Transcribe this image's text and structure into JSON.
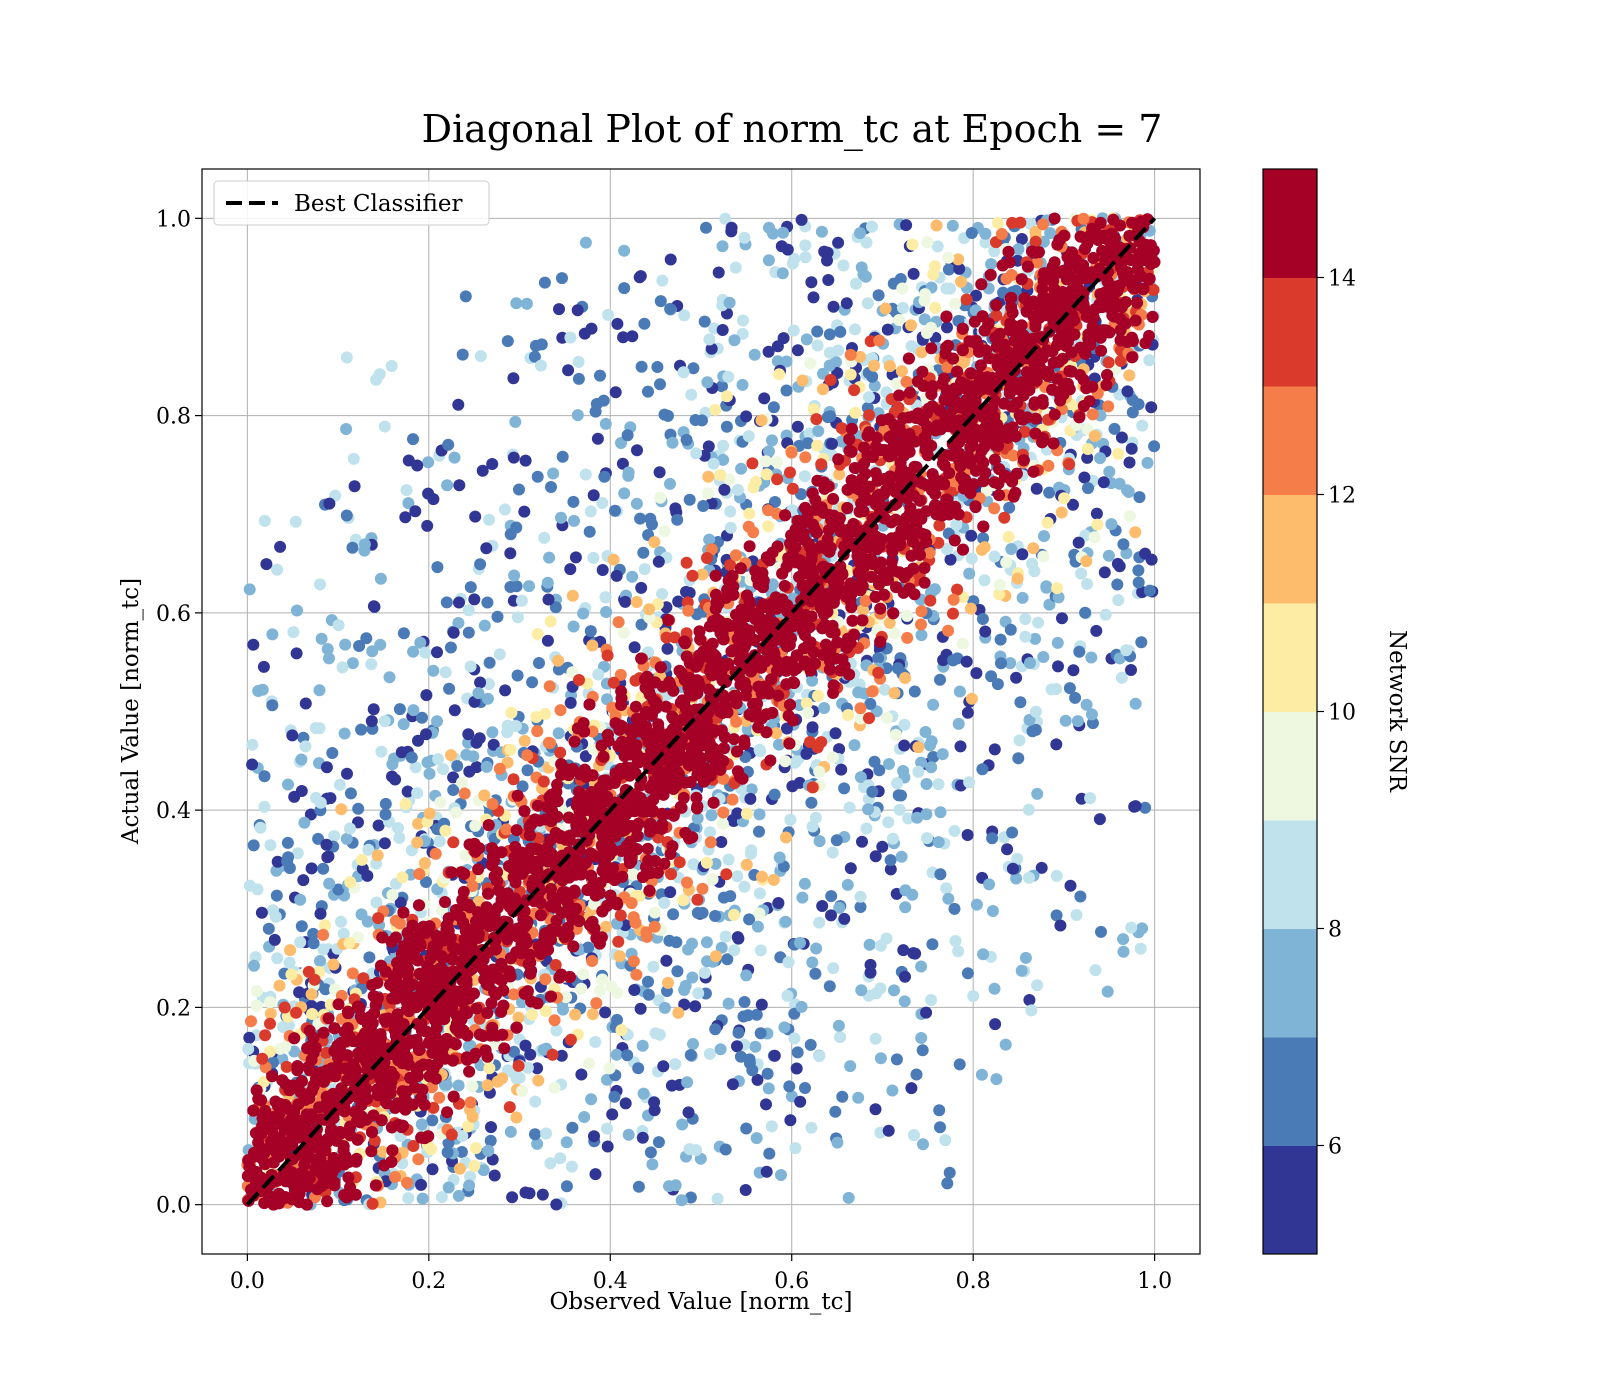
{
  "chart_data": {
    "type": "scatter",
    "title": "Diagonal Plot of norm_tc at Epoch = 7",
    "xlabel": "Observed Value [norm_tc]",
    "ylabel": "Actual Value [norm_tc]",
    "xlim": [
      -0.05,
      1.05
    ],
    "ylim": [
      -0.05,
      1.05
    ],
    "xticks": [
      "0.0",
      "0.2",
      "0.4",
      "0.6",
      "0.8",
      "1.0"
    ],
    "yticks": [
      "0.0",
      "0.2",
      "0.4",
      "0.6",
      "0.8",
      "1.0"
    ],
    "grid": true,
    "legend": {
      "placement": "upper-left",
      "entries": [
        {
          "label": "Best Classifier",
          "style": "dashed",
          "color": "#000000"
        }
      ]
    },
    "reference_line": {
      "name": "Best Classifier",
      "x": [
        0,
        1
      ],
      "y": [
        0,
        1
      ],
      "style": "dashed",
      "color": "#000000"
    },
    "colorbar": {
      "label": "Network SNR",
      "range": [
        5,
        15
      ],
      "tick_labels": [
        "6",
        "8",
        "10",
        "12",
        "14"
      ],
      "tick_values": [
        6,
        8,
        10,
        12,
        14
      ],
      "bins": [
        {
          "from": 5,
          "to": 6,
          "color": "#313695"
        },
        {
          "from": 6,
          "to": 7,
          "color": "#4a7bb7"
        },
        {
          "from": 7,
          "to": 8,
          "color": "#80b4d6"
        },
        {
          "from": 8,
          "to": 9,
          "color": "#bfe2ed"
        },
        {
          "from": 9,
          "to": 10,
          "color": "#eef7e0"
        },
        {
          "from": 10,
          "to": 11,
          "color": "#fdeca3"
        },
        {
          "from": 11,
          "to": 12,
          "color": "#fdbb6c"
        },
        {
          "from": 12,
          "to": 13,
          "color": "#f47d4a"
        },
        {
          "from": 13,
          "to": 14,
          "color": "#d93a2b"
        },
        {
          "from": 14,
          "to": 15,
          "color": "#a50026"
        }
      ]
    },
    "points_description_sampled": {
      "high_snr_band": {
        "snr_range": [
          13,
          15
        ],
        "max_abs_deviation": 0.13
      },
      "mid_snr": {
        "snr_range": [
          9,
          13
        ],
        "max_abs_deviation": 0.3
      },
      "low_snr": {
        "snr_range": [
          5,
          9
        ],
        "max_abs_deviation": 0.75
      }
    }
  }
}
